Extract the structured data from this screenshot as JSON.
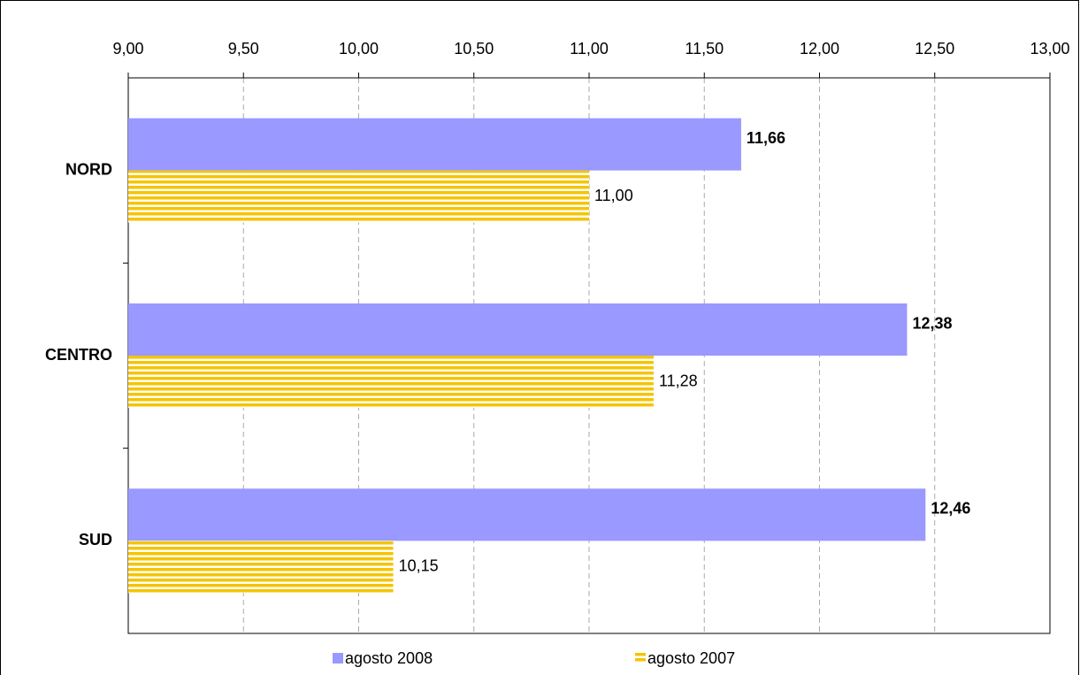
{
  "chart_data": {
    "type": "bar",
    "orientation": "horizontal",
    "categories": [
      "NORD",
      "CENTRO",
      "SUD"
    ],
    "series": [
      {
        "name": "agosto 2008",
        "color": "#9999ff",
        "values": [
          11.66,
          12.38,
          12.46
        ],
        "value_labels": [
          "11,66",
          "12,38",
          "12,46"
        ]
      },
      {
        "name": "agosto 2007",
        "color": "#f5c400",
        "pattern": "horizontal-stripes",
        "values": [
          11.0,
          11.28,
          10.15
        ],
        "value_labels": [
          "11,00",
          "11,28",
          "10,15"
        ]
      }
    ],
    "xlim": [
      9,
      13
    ],
    "xticks": [
      {
        "value": 9,
        "label": "9,00"
      },
      {
        "value": 9.5,
        "label": "9,50"
      },
      {
        "value": 10,
        "label": "10,00"
      },
      {
        "value": 10.5,
        "label": "10,50"
      },
      {
        "value": 11,
        "label": "11,00"
      },
      {
        "value": 11.5,
        "label": "11,50"
      },
      {
        "value": 12,
        "label": "12,00"
      },
      {
        "value": 12.5,
        "label": "12,50"
      },
      {
        "value": 13,
        "label": "13,00"
      }
    ],
    "grid": true,
    "legend": "bottom"
  }
}
